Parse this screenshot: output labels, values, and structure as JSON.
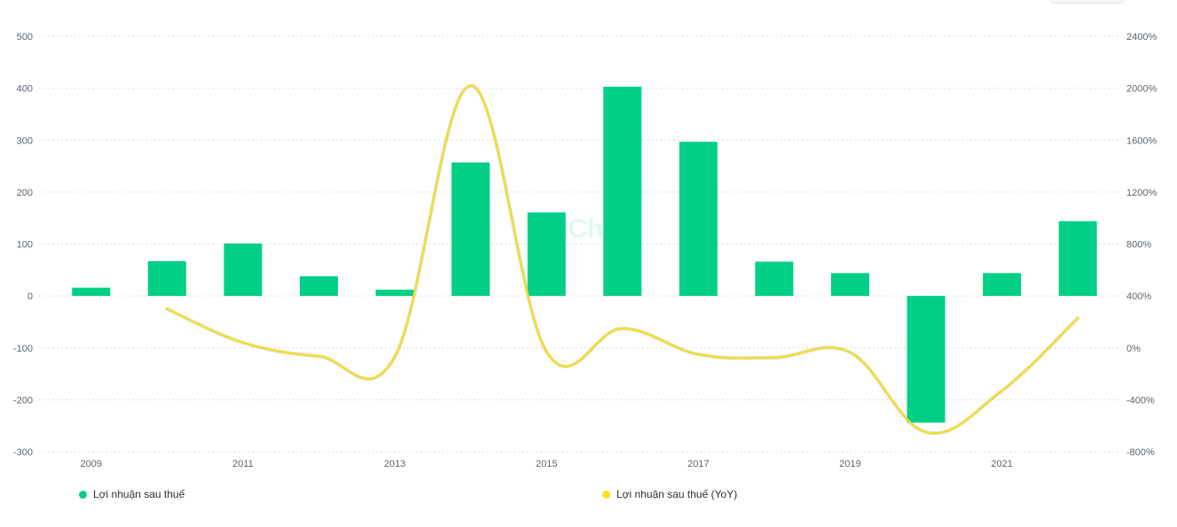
{
  "chart_data": {
    "type": "bar",
    "categories": [
      "2009",
      "2010",
      "2011",
      "2012",
      "2013",
      "2014",
      "2015",
      "2016",
      "2017",
      "2018",
      "2019",
      "2020",
      "2021",
      "2022"
    ],
    "x_tick_labels": [
      "2009",
      "2011",
      "2013",
      "2015",
      "2017",
      "2019",
      "2021"
    ],
    "y_left_ticks": [
      "500",
      "400",
      "300",
      "200",
      "100",
      "0",
      "-100",
      "-200",
      "-300"
    ],
    "y_right_ticks": [
      "2400%",
      "2000%",
      "1600%",
      "1200%",
      "800%",
      "400%",
      "0%",
      "-400%",
      "-800%"
    ],
    "ylim_left": [
      -300,
      500
    ],
    "ylim_right": [
      -800,
      2400
    ],
    "grid": true,
    "legend_position": "bottom",
    "series": [
      {
        "name": "Lợi nhuận sau thuế",
        "type": "bar",
        "axis": "left",
        "color": "#00cf85",
        "values": [
          16,
          67,
          101,
          38,
          12,
          257,
          161,
          403,
          297,
          66,
          44,
          -244,
          44,
          144
        ]
      },
      {
        "name": "Lợi nhuận sau thuế (YoY)",
        "type": "line",
        "axis": "right",
        "color": "#f5e11b",
        "values": [
          null,
          300,
          40,
          -65,
          -70,
          2020,
          -30,
          150,
          -50,
          -75,
          -35,
          -650,
          -330,
          230
        ]
      }
    ]
  },
  "watermark": "WiChart",
  "colors": {
    "bar": "#00cf85",
    "line": "#f5e11b",
    "grid": "#d9dce1",
    "tick": "#5c6370"
  }
}
